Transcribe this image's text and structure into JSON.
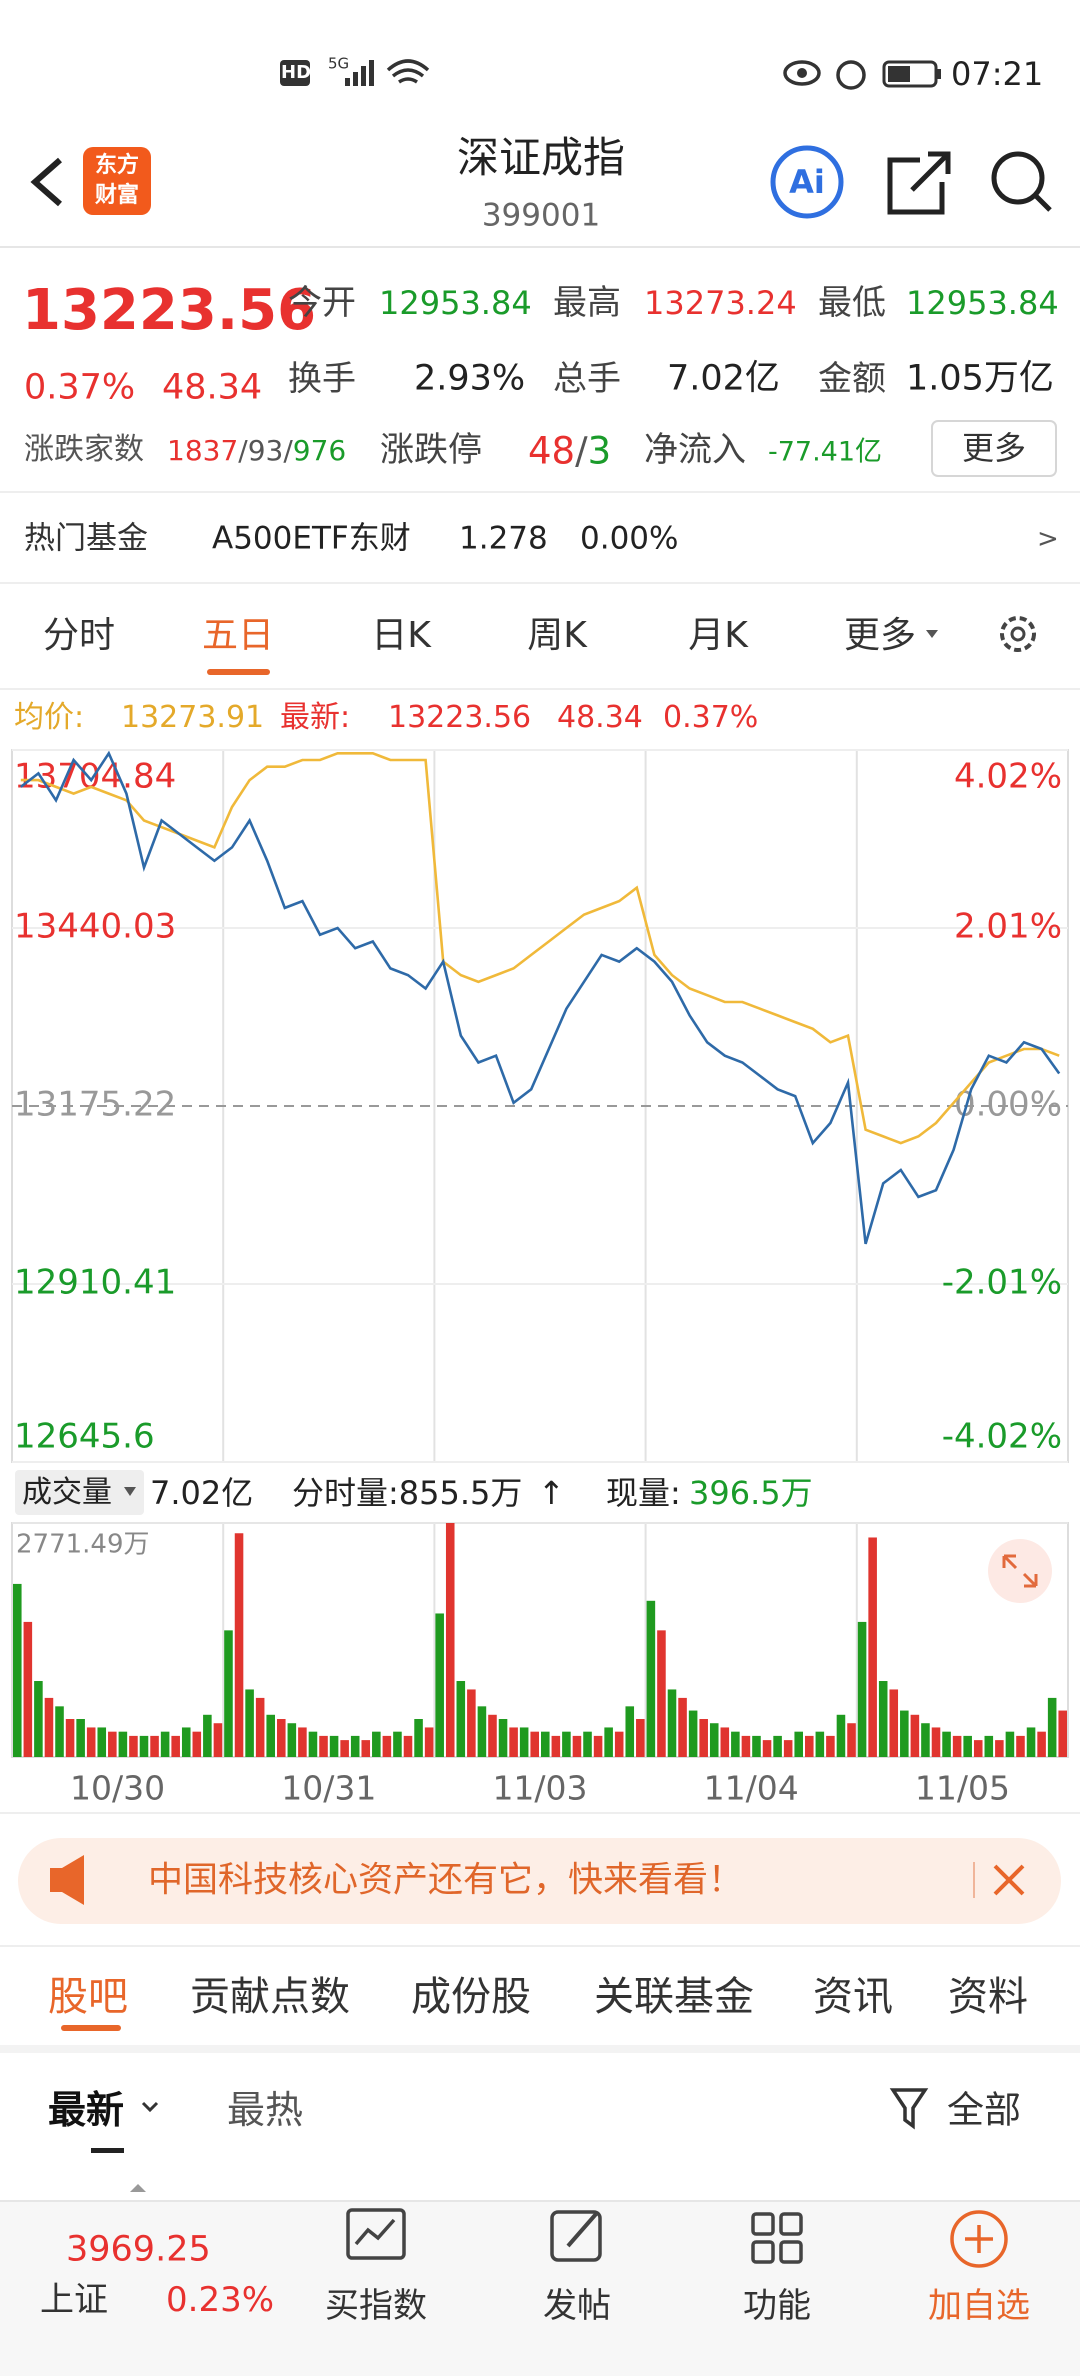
{
  "status_bar": {
    "hd": "HD",
    "network": "5G",
    "time": "07:21"
  },
  "header": {
    "logo_top": "东方",
    "logo_bottom": "财富",
    "title": "深证成指",
    "code": "399001",
    "ai": "Ai"
  },
  "quote": {
    "price": "13223.56",
    "change_pct": "0.37%",
    "change": "48.34",
    "fields": [
      {
        "label": "今开",
        "value": "12953.84",
        "tone": "down"
      },
      {
        "label": "最高",
        "value": "13273.24",
        "tone": "up"
      },
      {
        "label": "最低",
        "value": "12953.84",
        "tone": "down"
      },
      {
        "label": "换手",
        "value": "2.93%",
        "tone": "flat"
      },
      {
        "label": "总手",
        "value": "7.02亿",
        "tone": "flat"
      },
      {
        "label": "金额",
        "value": "1.05万亿",
        "tone": "flat"
      }
    ],
    "breadth_label": "涨跌家数",
    "breadth": [
      "1837",
      "/",
      "93",
      "/",
      "976"
    ],
    "limit_label": "涨跌停",
    "limit": [
      "48",
      "/",
      "3"
    ],
    "netflow_label": "净流入",
    "netflow": "-77.41亿",
    "more": "更多"
  },
  "hot_fund": {
    "label": "热门基金",
    "name": "A500ETF东财",
    "price": "1.278",
    "pct": "0.00%",
    "arrow": ">"
  },
  "tabs": {
    "items": [
      "分时",
      "五日",
      "日K",
      "周K",
      "月K",
      "更多"
    ],
    "active": 1
  },
  "legend": {
    "avg_label": "均价:",
    "avg": "13273.91",
    "last_label": "最新:",
    "last": "13223.56",
    "change": "48.34",
    "pct": "0.37%"
  },
  "chart": {
    "type": "line",
    "ylim": [
      12645.6,
      13704.84
    ],
    "yticks": [
      13704.84,
      13440.03,
      13175.22,
      12910.41,
      12645.6
    ],
    "y2ticks": [
      {
        "value": 4.02,
        "label": "4.02%"
      },
      {
        "value": 2.01,
        "label": "2.01%"
      },
      {
        "value": 0,
        "label": "0.00%"
      },
      {
        "value": -2.01,
        "label": "-2.01%"
      },
      {
        "value": -4.02,
        "label": "-4.02%"
      }
    ],
    "categories": [
      "10/30",
      "10/31",
      "11/03",
      "11/04",
      "11/05"
    ],
    "series": [
      {
        "color": "#2e6aa8",
        "values": [
          13650,
          13670,
          13630,
          13690,
          13660,
          13700,
          13640,
          13530,
          13600,
          13580,
          13560,
          13540,
          13560,
          13600,
          13540,
          13470,
          13480,
          13430,
          13440,
          13410,
          13420,
          13380,
          13370,
          13350,
          13390,
          13280,
          13240,
          13250,
          13180,
          13200,
          13260,
          13320,
          13360,
          13400,
          13390,
          13410,
          13390,
          13360,
          13310,
          13270,
          13250,
          13240,
          13220,
          13200,
          13190,
          13120,
          13150,
          13210,
          12970,
          13060,
          13080,
          13040,
          13050,
          13110,
          13200,
          13250,
          13240,
          13270,
          13260,
          13223.56
        ]
      },
      {
        "color": "#f0b93a",
        "values": [
          13660,
          13660,
          13650,
          13640,
          13650,
          13640,
          13630,
          13600,
          13590,
          13580,
          13570,
          13560,
          13620,
          13660,
          13680,
          13680,
          13690,
          13690,
          13700,
          13700,
          13700,
          13690,
          13690,
          13690,
          13390,
          13370,
          13360,
          13370,
          13380,
          13400,
          13420,
          13440,
          13460,
          13470,
          13480,
          13500,
          13400,
          13370,
          13350,
          13340,
          13330,
          13330,
          13320,
          13310,
          13300,
          13290,
          13270,
          13280,
          13140,
          13130,
          13120,
          13130,
          13150,
          13180,
          13210,
          13240,
          13250,
          13260,
          13260,
          13250
        ]
      }
    ]
  },
  "volume": {
    "selector": "成交量",
    "total": "7.02亿",
    "tick_volume": "分时量:855.5万",
    "tick_arrow": "↑",
    "current_label": "现量:",
    "current": "396.5万",
    "ylim": [
      0,
      2771.49
    ],
    "yticks": [
      {
        "value": 2771.49,
        "label": "2771.49万"
      }
    ],
    "series": [
      {
        "color": "#1f9a1f",
        "values": [
          2050,
          900,
          600,
          450,
          350,
          300,
          250,
          300,
          350,
          500,
          1500,
          800,
          500,
          400,
          300,
          250,
          250,
          300,
          300,
          450,
          1700,
          900,
          600,
          450,
          350,
          300,
          300,
          300,
          350,
          600,
          1850,
          800,
          550,
          400,
          300,
          250,
          250,
          300,
          300,
          500,
          1600,
          900,
          550,
          400,
          300,
          250,
          250,
          300,
          350,
          700
        ]
      },
      {
        "color": "#e0352f",
        "values": [
          1600,
          700,
          450,
          350,
          300,
          250,
          250,
          250,
          300,
          400,
          2650,
          700,
          450,
          350,
          250,
          200,
          200,
          250,
          250,
          350,
          2771.49,
          800,
          500,
          350,
          300,
          250,
          250,
          250,
          300,
          450,
          1500,
          700,
          450,
          350,
          250,
          200,
          200,
          250,
          250,
          400,
          2600,
          800,
          500,
          350,
          250,
          200,
          200,
          250,
          300,
          550
        ]
      }
    ]
  },
  "banner": {
    "text": "中国科技核心资产还有它，快来看看！"
  },
  "sub_tabs": {
    "items": [
      "股吧",
      "贡献点数",
      "成份股",
      "关联基金",
      "资讯",
      "资料"
    ],
    "active": 0
  },
  "sort": {
    "latest": "最新",
    "hot": "最热",
    "filter": "全部"
  },
  "bottom_bar": {
    "index_price": "3969.25",
    "index_name": "上证",
    "index_pct": "0.23%",
    "items": [
      "买指数",
      "发帖",
      "功能",
      "加自选"
    ]
  }
}
